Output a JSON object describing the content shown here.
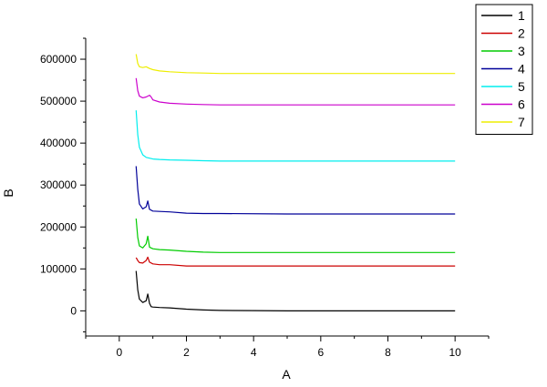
{
  "chart_data": {
    "type": "line",
    "xlabel": "A",
    "ylabel": "B",
    "xlim": [
      -1,
      11
    ],
    "ylim": [
      -60000,
      650000
    ],
    "x_ticks": [
      0,
      2,
      4,
      6,
      8,
      10
    ],
    "y_ticks": [
      0,
      100000,
      200000,
      300000,
      400000,
      500000,
      600000
    ],
    "x_tick_labels": [
      "0",
      "2",
      "4",
      "6",
      "8",
      "10"
    ],
    "y_tick_labels": [
      "0",
      "100000",
      "200000",
      "300000",
      "400000",
      "500000",
      "600000"
    ],
    "grid": false,
    "legend_position": "top-right",
    "series": [
      {
        "name": "1",
        "color": "#000000",
        "x": [
          0.5,
          0.55,
          0.6,
          0.7,
          0.8,
          0.85,
          0.9,
          0.95,
          1.0,
          1.2,
          1.5,
          2.0,
          2.5,
          3,
          4,
          5,
          6,
          8,
          10
        ],
        "y": [
          95000,
          50000,
          28000,
          20000,
          24000,
          40000,
          18000,
          10000,
          9000,
          8000,
          7000,
          4000,
          2000,
          1000,
          500,
          0,
          0,
          0,
          0
        ]
      },
      {
        "name": "2",
        "color": "#cc0000",
        "x": [
          0.5,
          0.55,
          0.6,
          0.7,
          0.8,
          0.85,
          0.9,
          1.0,
          1.2,
          1.5,
          2.0,
          3,
          5,
          10
        ],
        "y": [
          127000,
          120000,
          115000,
          114000,
          120000,
          128000,
          116000,
          112000,
          110000,
          110000,
          107000,
          107000,
          107000,
          107000
        ]
      },
      {
        "name": "3",
        "color": "#00cc00",
        "x": [
          0.5,
          0.55,
          0.6,
          0.7,
          0.8,
          0.85,
          0.9,
          1.0,
          1.2,
          1.5,
          2.0,
          2.5,
          3,
          5,
          10
        ],
        "y": [
          220000,
          175000,
          155000,
          150000,
          160000,
          178000,
          152000,
          148000,
          146000,
          145000,
          142000,
          140000,
          139000,
          139000,
          139000
        ]
      },
      {
        "name": "4",
        "color": "#000099",
        "x": [
          0.5,
          0.55,
          0.6,
          0.7,
          0.8,
          0.85,
          0.9,
          1.0,
          1.2,
          1.5,
          2.0,
          2.5,
          3,
          5,
          10
        ],
        "y": [
          345000,
          290000,
          255000,
          243000,
          248000,
          262000,
          242000,
          238000,
          237000,
          236000,
          233000,
          232000,
          232000,
          231000,
          231000
        ]
      },
      {
        "name": "5",
        "color": "#00eeee",
        "x": [
          0.5,
          0.55,
          0.6,
          0.7,
          0.8,
          0.9,
          1.0,
          1.2,
          1.5,
          2.0,
          2.5,
          3,
          5,
          10
        ],
        "y": [
          478000,
          420000,
          390000,
          372000,
          366000,
          364000,
          362000,
          361000,
          360000,
          359000,
          358000,
          357000,
          357000,
          357000
        ]
      },
      {
        "name": "6",
        "color": "#cc00cc",
        "x": [
          0.5,
          0.55,
          0.6,
          0.7,
          0.8,
          0.9,
          0.95,
          1.0,
          1.2,
          1.5,
          2.0,
          2.5,
          3,
          5,
          10
        ],
        "y": [
          555000,
          525000,
          512000,
          508000,
          510000,
          514000,
          510000,
          503000,
          498000,
          495000,
          493000,
          492000,
          491000,
          491000,
          491000
        ]
      },
      {
        "name": "7",
        "color": "#eeee00",
        "x": [
          0.5,
          0.55,
          0.6,
          0.7,
          0.8,
          0.9,
          1.0,
          1.2,
          1.5,
          2.0,
          2.5,
          3,
          5,
          10
        ],
        "y": [
          612000,
          590000,
          582000,
          580000,
          582000,
          578000,
          575000,
          572000,
          570000,
          568000,
          567000,
          566000,
          566000,
          566000
        ]
      }
    ]
  }
}
